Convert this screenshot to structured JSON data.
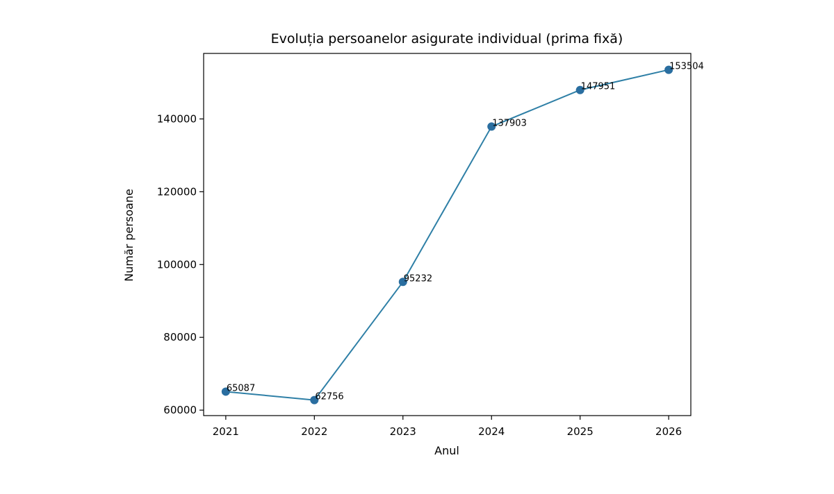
{
  "chart_data": {
    "type": "line",
    "title": "Evoluția persoanelor asigurate individual (prima fixă)",
    "xlabel": "Anul",
    "ylabel": "Număr persoane",
    "x": [
      2021,
      2022,
      2023,
      2024,
      2025,
      2026
    ],
    "series": [
      {
        "values": [
          65087,
          62756,
          95232,
          137903,
          147951,
          153504
        ],
        "color": "#2e7fa6",
        "marker_color": "#2a6ea0"
      }
    ],
    "data_labels": [
      "65087",
      "62756",
      "95232",
      "137903",
      "147951",
      "153504"
    ],
    "x_ticks": [
      "2021",
      "2022",
      "2023",
      "2024",
      "2025",
      "2026"
    ],
    "y_ticks": [
      60000,
      80000,
      100000,
      120000,
      140000
    ],
    "y_tick_labels": [
      "60000",
      "80000",
      "100000",
      "120000",
      "140000"
    ],
    "xlim": [
      2020.75,
      2026.25
    ],
    "ylim": [
      58500,
      158000
    ],
    "grid": false,
    "legend": "none"
  }
}
